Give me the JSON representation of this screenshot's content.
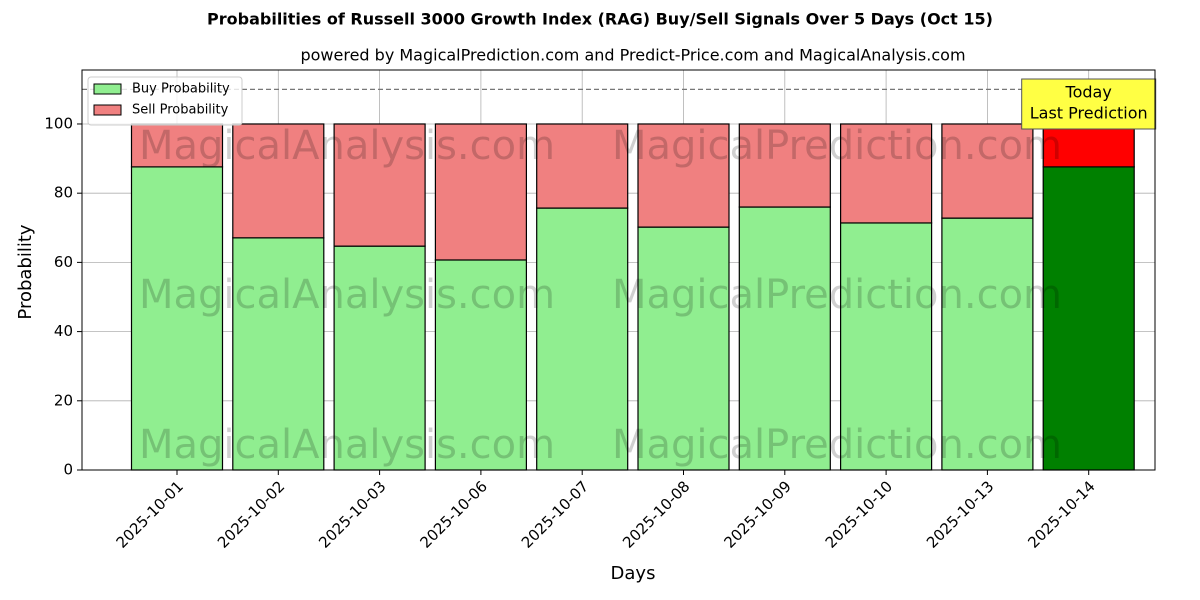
{
  "chart_data": {
    "type": "stacked_bar",
    "title": "Probabilities of Russell 3000 Growth Index (RAG) Buy/Sell Signals Over 5 Days (Oct 15)",
    "subtitle": "powered by MagicalPrediction.com and Predict-Price.com and MagicalAnalysis.com",
    "x_label": "Days",
    "y_label": "Probability",
    "categories": [
      "2025-10-01",
      "2025-10-02",
      "2025-10-03",
      "2025-10-06",
      "2025-10-07",
      "2025-10-08",
      "2025-10-09",
      "2025-10-10",
      "2025-10-13",
      "2025-10-14"
    ],
    "series": [
      {
        "name": "Buy Probability",
        "color": "#90ee90",
        "colors": [
          "#90ee90",
          "#90ee90",
          "#90ee90",
          "#90ee90",
          "#90ee90",
          "#90ee90",
          "#90ee90",
          "#90ee90",
          "#90ee90",
          "#008000"
        ],
        "values": [
          87.6,
          67.1,
          64.7,
          60.7,
          75.7,
          70.2,
          76.0,
          71.4,
          72.8,
          87.6
        ]
      },
      {
        "name": "Sell Probability",
        "color": "#f08080",
        "colors": [
          "#f08080",
          "#f08080",
          "#f08080",
          "#f08080",
          "#f08080",
          "#f08080",
          "#f08080",
          "#f08080",
          "#f08080",
          "#ff0000"
        ],
        "values": [
          12.4,
          32.9,
          35.3,
          39.3,
          24.3,
          29.8,
          24.0,
          28.6,
          27.2,
          12.4
        ]
      }
    ],
    "ylim": [
      0,
      115.6
    ],
    "yticks": [
      0,
      20,
      40,
      60,
      80,
      100
    ],
    "hline": 110,
    "grid": true,
    "legend": "upper-left",
    "annotation": [
      "Today",
      "Last Prediction"
    ],
    "watermarks": [
      "MagicalAnalysis.com",
      "MagicalPrediction.com"
    ]
  }
}
